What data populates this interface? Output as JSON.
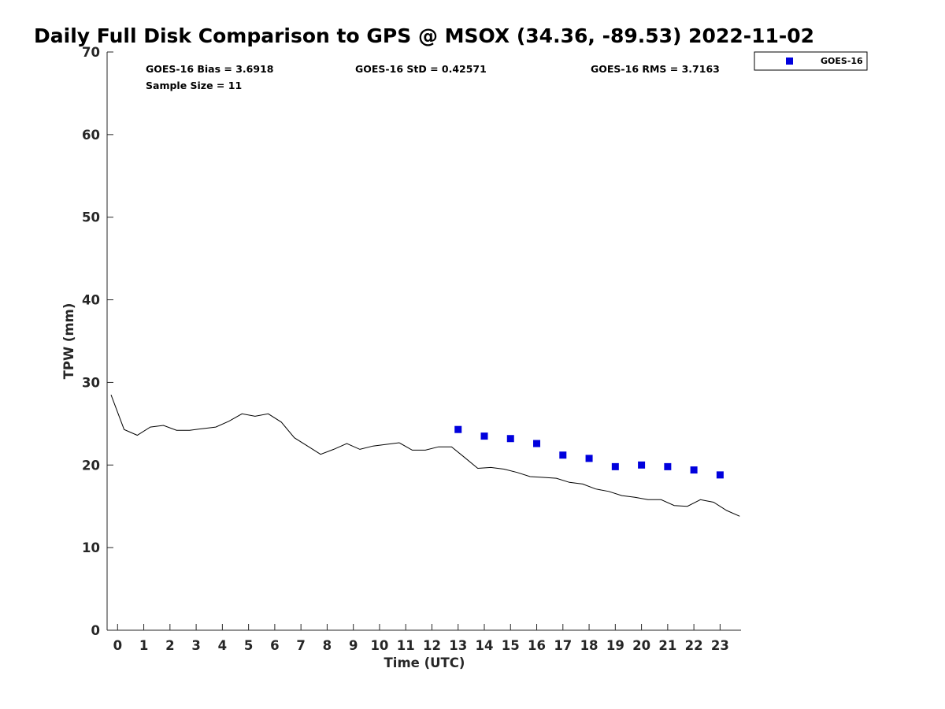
{
  "chart_data": {
    "type": "line",
    "title": "Daily Full Disk Comparison to GPS @ MSOX (34.36, -89.53) 2022-11-02",
    "xlabel": "Time (UTC)",
    "ylabel": "TPW (mm)",
    "xlim": [
      -0.4,
      23.8
    ],
    "ylim": [
      0,
      70
    ],
    "xticks": [
      0,
      1,
      2,
      3,
      4,
      5,
      6,
      7,
      8,
      9,
      10,
      11,
      12,
      13,
      14,
      15,
      16,
      17,
      18,
      19,
      20,
      21,
      22,
      23
    ],
    "yticks": [
      0,
      10,
      20,
      30,
      40,
      50,
      60,
      70
    ],
    "grid": false,
    "legend_position": "top-right",
    "stats": {
      "bias": "GOES-16 Bias = 3.6918",
      "std": "GOES-16 StD = 0.42571",
      "rms": "GOES-16 RMS = 3.7163",
      "sample_size": "Sample Size = 11"
    },
    "series": [
      {
        "kind": "line",
        "color": "#000000",
        "x": [
          -0.25,
          0.25,
          0.75,
          1.25,
          1.75,
          2.25,
          2.75,
          3.25,
          3.75,
          4.25,
          4.75,
          5.25,
          5.75,
          6.25,
          6.75,
          7.25,
          7.75,
          8.25,
          8.75,
          9.25,
          9.75,
          10.25,
          10.75,
          11.25,
          11.75,
          12.25,
          12.75,
          13.25,
          13.75,
          14.25,
          14.75,
          15.25,
          15.75,
          16.25,
          16.75,
          17.25,
          17.75,
          18.25,
          18.75,
          19.25,
          19.75,
          20.25,
          20.75,
          21.25,
          21.75,
          22.25,
          22.75,
          23.25,
          23.75
        ],
        "y": [
          28.5,
          24.3,
          23.6,
          24.6,
          24.8,
          24.2,
          24.2,
          24.4,
          24.6,
          25.3,
          26.2,
          25.9,
          26.2,
          25.2,
          23.3,
          22.3,
          21.3,
          21.9,
          22.6,
          21.9,
          22.3,
          22.5,
          22.7,
          21.8,
          21.8,
          22.2,
          22.2,
          20.9,
          19.6,
          19.7,
          19.5,
          19.1,
          18.6,
          18.5,
          18.4,
          17.9,
          17.7,
          17.1,
          16.8,
          16.3,
          16.1,
          15.8,
          15.8,
          15.1,
          15.0,
          15.8,
          15.5,
          14.5,
          13.8
        ]
      },
      {
        "name": "GOES-16",
        "kind": "scatter",
        "marker": "square",
        "color": "#0000dd",
        "x": [
          13,
          14,
          15,
          16,
          17,
          18,
          19,
          20,
          21,
          22,
          23
        ],
        "y": [
          24.3,
          23.5,
          23.2,
          22.6,
          21.2,
          20.8,
          19.8,
          20.0,
          19.8,
          19.4,
          18.8
        ]
      }
    ]
  }
}
